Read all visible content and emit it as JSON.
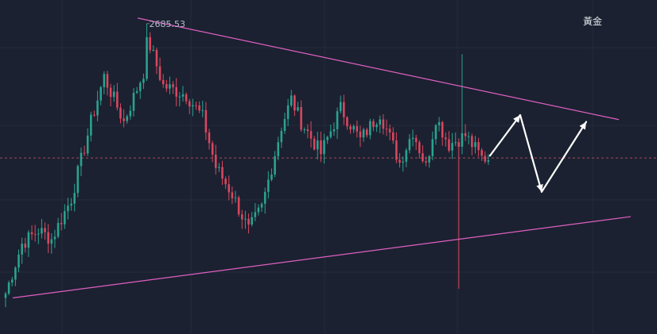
{
  "symbol": "黃金",
  "peak_label": "2685.53",
  "colors": {
    "background": "#1b2130",
    "grid": "#252c3b",
    "up": "#2aa391",
    "down": "#d9475f",
    "trendline": "#e05fc2",
    "projection": "#ffffff",
    "price_line": "#a8495a",
    "label": "#b5bcc9"
  },
  "chart_data": {
    "type": "candlestick",
    "title": "",
    "xlabel": "",
    "ylabel": "",
    "grid": true,
    "ylim": [
      2548,
      2696
    ],
    "bars": 148,
    "current_price": 2626,
    "high_annotation": {
      "bar": 43,
      "value": 2685.53
    },
    "path": [
      [
        0,
        2566
      ],
      [
        5,
        2588
      ],
      [
        10,
        2594
      ],
      [
        14,
        2590
      ],
      [
        20,
        2608
      ],
      [
        26,
        2642
      ],
      [
        30,
        2662
      ],
      [
        36,
        2642
      ],
      [
        42,
        2664
      ],
      [
        43,
        2680
      ],
      [
        48,
        2658
      ],
      [
        55,
        2654
      ],
      [
        60,
        2644
      ],
      [
        64,
        2622
      ],
      [
        69,
        2610
      ],
      [
        74,
        2594
      ],
      [
        78,
        2604
      ],
      [
        84,
        2640
      ],
      [
        87,
        2652
      ],
      [
        90,
        2642
      ],
      [
        96,
        2628
      ],
      [
        102,
        2648
      ],
      [
        108,
        2634
      ],
      [
        114,
        2646
      ],
      [
        120,
        2624
      ],
      [
        124,
        2638
      ],
      [
        128,
        2622
      ],
      [
        131,
        2644
      ],
      [
        135,
        2632
      ],
      [
        140,
        2636
      ],
      [
        145,
        2626
      ],
      [
        147,
        2626
      ]
    ],
    "trendlines": [
      {
        "name": "upper",
        "points": [
          [
            0,
            2688
          ],
          [
            147,
            2643
          ]
        ]
      },
      {
        "name": "lower",
        "points": [
          [
            0,
            2564
          ],
          [
            147,
            2600
          ]
        ]
      }
    ],
    "projection": [
      [
        114,
        2627
      ],
      [
        123,
        2645
      ],
      [
        128,
        2611
      ],
      [
        138,
        2642
      ]
    ]
  }
}
